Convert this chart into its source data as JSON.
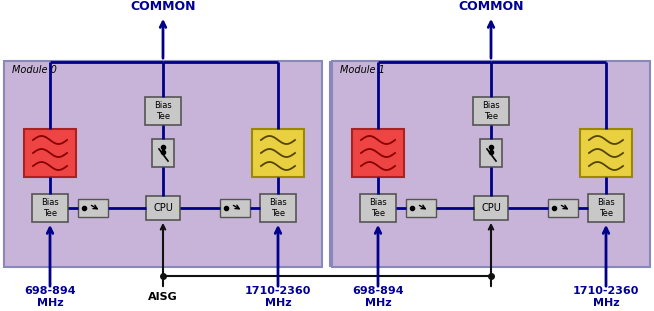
{
  "fig_w": 6.54,
  "fig_h": 3.11,
  "dpi": 100,
  "bg_white": "#ffffff",
  "module_bg": "#c8b4d8",
  "module_edge": "#8888bb",
  "box_fill": "#c8c8c8",
  "box_edge": "#555555",
  "red_fill": "#ee4444",
  "red_edge": "#aa2222",
  "yellow_fill": "#e8d040",
  "yellow_edge": "#998800",
  "wave_red": "#880000",
  "wave_yellow": "#554400",
  "arrow_blue": "#000088",
  "arrow_black": "#111111",
  "text_blue": "#000099",
  "text_black": "#000000",
  "common_label": "COMMON",
  "module0_label": "Module 0",
  "module1_label": "Module 1",
  "aisg_label": "AISG",
  "freq_low": "698-894\nMHz",
  "freq_high": "1710-2360\nMHz"
}
